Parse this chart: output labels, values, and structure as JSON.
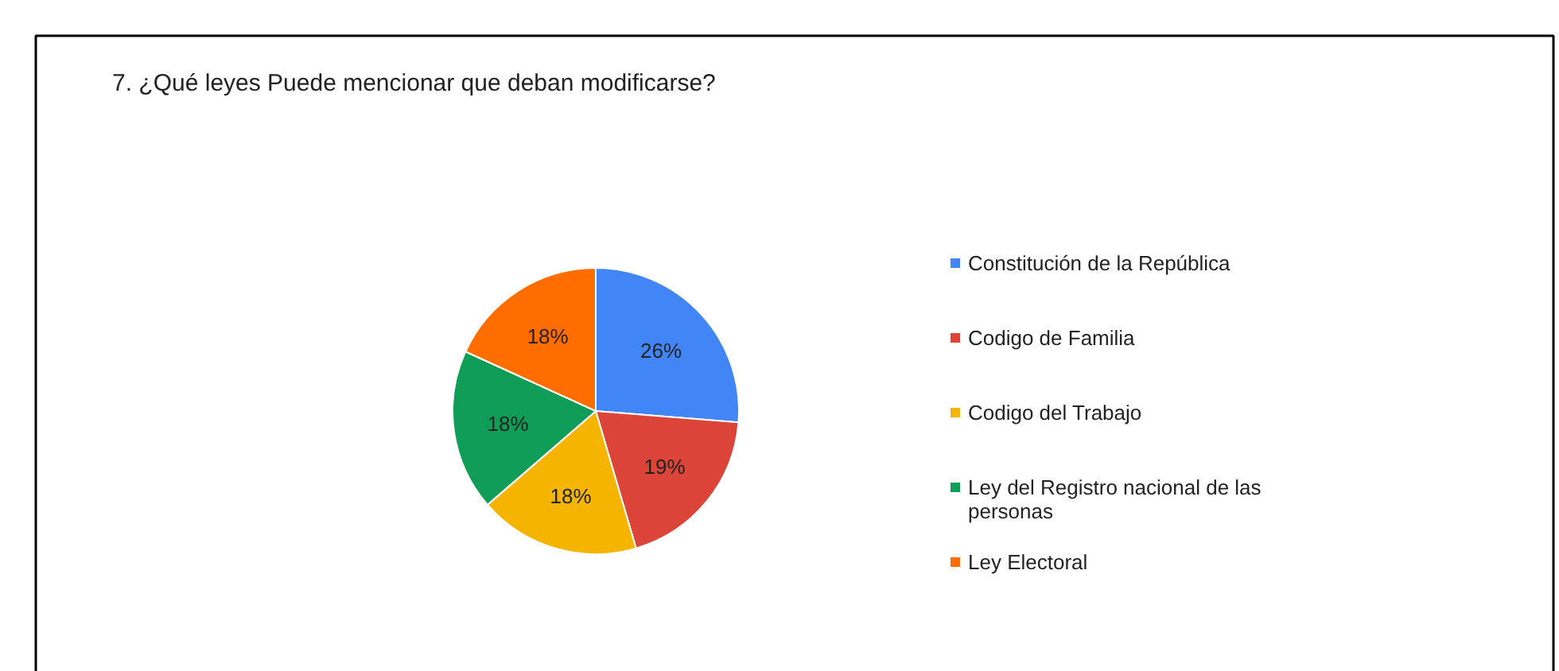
{
  "chart_data": {
    "type": "pie",
    "title": "7. ¿Qué leyes Puede mencionar que deban modificarse?",
    "categories": [
      "Constitución de la República",
      "Codigo de Familia",
      "Codigo del Trabajo",
      "Ley del Registro nacional de las personas",
      "Ley Electoral"
    ],
    "values": [
      26,
      19,
      18,
      18,
      18
    ],
    "colors": [
      "#4285f4",
      "#db4437",
      "#f4b400",
      "#0f9d58",
      "#ff6d01"
    ],
    "value_labels": [
      "26%",
      "19%",
      "18%",
      "18%",
      "18%"
    ],
    "legend": "right"
  }
}
